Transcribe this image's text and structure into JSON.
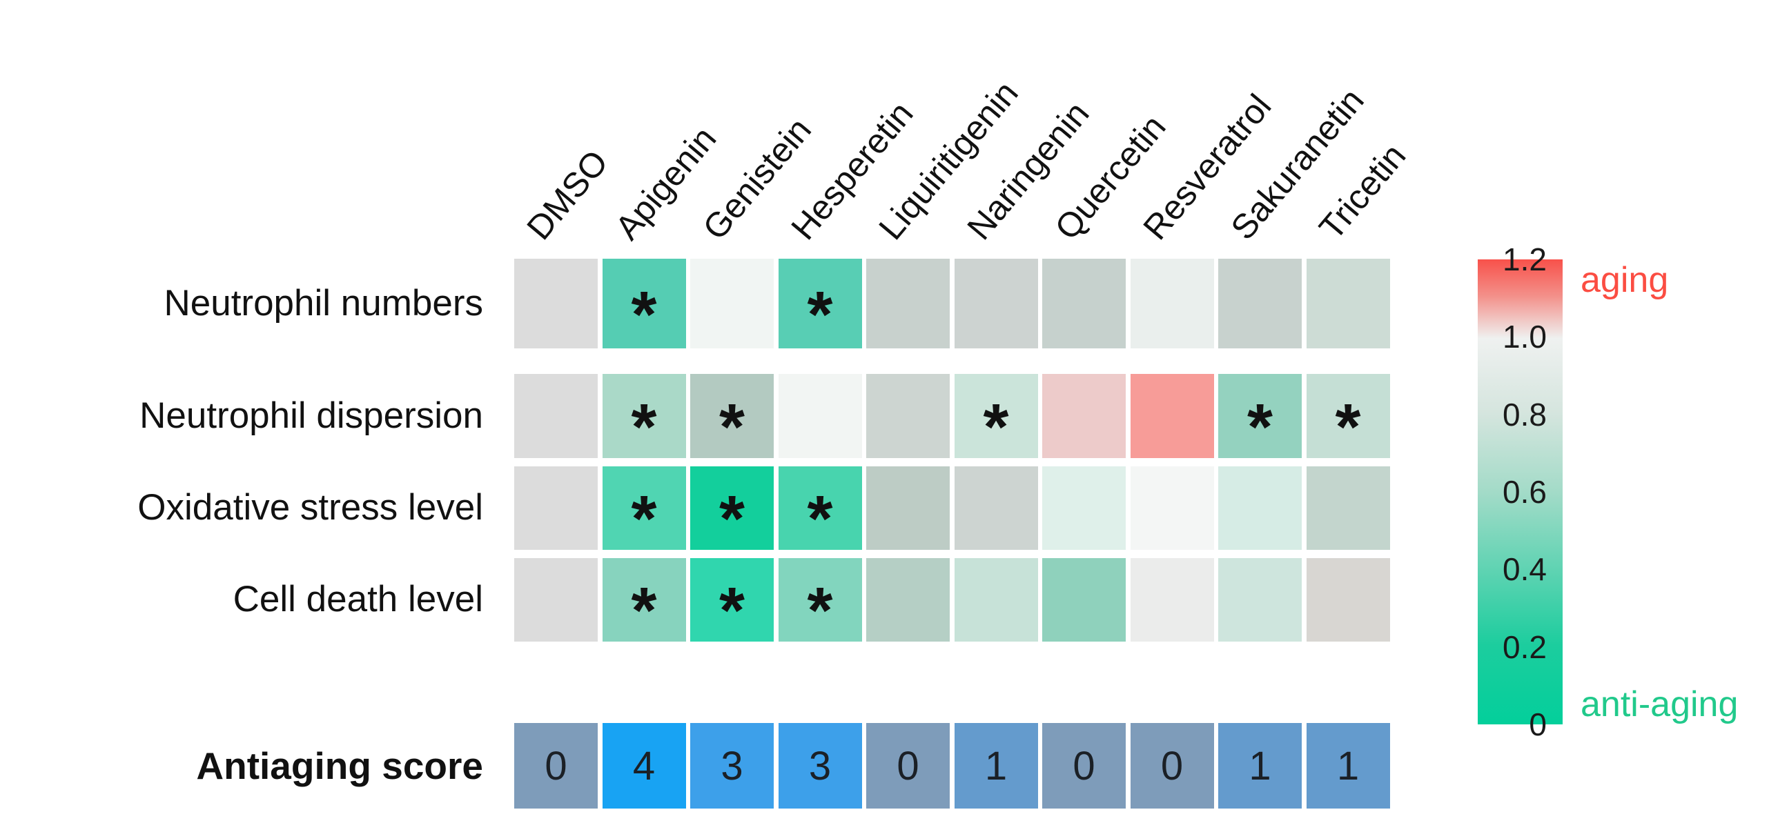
{
  "chart_data": {
    "type": "heatmap",
    "columns": [
      "DMSO",
      "Apigenin",
      "Genistein",
      "Hesperetin",
      "Liquiritigenin",
      "Naringenin",
      "Quercetin",
      "Resveratrol",
      "Sakuranetin",
      "Tricetin"
    ],
    "star_symbol": "*",
    "rows": [
      {
        "label": "Neutrophil numbers",
        "values_approx": [
          1.0,
          0.45,
          0.98,
          0.45,
          0.85,
          0.87,
          0.84,
          0.95,
          0.85,
          0.87
        ],
        "colors": [
          "#dcdcdc",
          "#55cdb3",
          "#f1f5f3",
          "#58ceb4",
          "#c8d1cd",
          "#cdd3d1",
          "#c6d1cd",
          "#eaefed",
          "#c8d2ce",
          "#cddcd5"
        ],
        "significant": [
          0,
          1,
          0,
          1,
          0,
          0,
          0,
          0,
          0,
          0
        ]
      },
      {
        "label": "Neutrophil dispersion",
        "values_approx": [
          1.0,
          0.72,
          0.8,
          0.97,
          0.88,
          0.8,
          1.05,
          1.15,
          0.65,
          0.78
        ],
        "colors": [
          "#dcdcdc",
          "#aad9c8",
          "#b3cac1",
          "#f2f5f3",
          "#cdd5d1",
          "#cbe4da",
          "#edcbca",
          "#f79c98",
          "#94d2bf",
          "#c5dfd5"
        ],
        "significant": [
          0,
          1,
          1,
          0,
          0,
          1,
          0,
          0,
          1,
          1
        ]
      },
      {
        "label": "Oxidative stress level",
        "values_approx": [
          1.0,
          0.42,
          0.25,
          0.43,
          0.83,
          0.87,
          0.93,
          0.97,
          0.9,
          0.85
        ],
        "colors": [
          "#dcdcdc",
          "#50d5b2",
          "#13cf9c",
          "#48d4ae",
          "#bdccc5",
          "#cdd4d1",
          "#dff0ea",
          "#f4f6f5",
          "#d6ece5",
          "#c3d5cd"
        ],
        "significant": [
          0,
          1,
          1,
          1,
          0,
          0,
          0,
          0,
          0,
          0
        ]
      },
      {
        "label": "Cell death level",
        "values_approx": [
          1.0,
          0.58,
          0.3,
          0.58,
          0.82,
          0.82,
          0.6,
          0.95,
          0.87,
          0.98
        ],
        "colors": [
          "#dcdcdc",
          "#87d3be",
          "#30d6ae",
          "#82d5be",
          "#b5cfc5",
          "#c7e2d8",
          "#8fd1bc",
          "#ebeceb",
          "#cee5dd",
          "#d8d6d2"
        ],
        "significant": [
          0,
          1,
          1,
          1,
          0,
          0,
          0,
          0,
          0,
          0
        ]
      }
    ],
    "score": {
      "label": "Antiaging score",
      "values": [
        0,
        4,
        3,
        3,
        0,
        1,
        0,
        0,
        1,
        1
      ],
      "colors": [
        "#7e9cba",
        "#18a3f3",
        "#3da0ea",
        "#3da0ea",
        "#7e9cba",
        "#649bcd",
        "#7e9cba",
        "#7e9cba",
        "#649bcd",
        "#649bcd"
      ]
    },
    "colorbar": {
      "ticks": [
        "1.2",
        "1.0",
        "0.8",
        "0.6",
        "0.4",
        "0.2",
        "0"
      ],
      "range": [
        0,
        1.2
      ],
      "top_annotation": "aging",
      "bottom_annotation": "anti-aging",
      "aging_color": "#fb4d42",
      "antiaging_color": "#21c98b",
      "gradient_top": "#f8514a",
      "gradient_mid": "#eff1f0",
      "gradient_bottom": "#03cf9b"
    }
  }
}
